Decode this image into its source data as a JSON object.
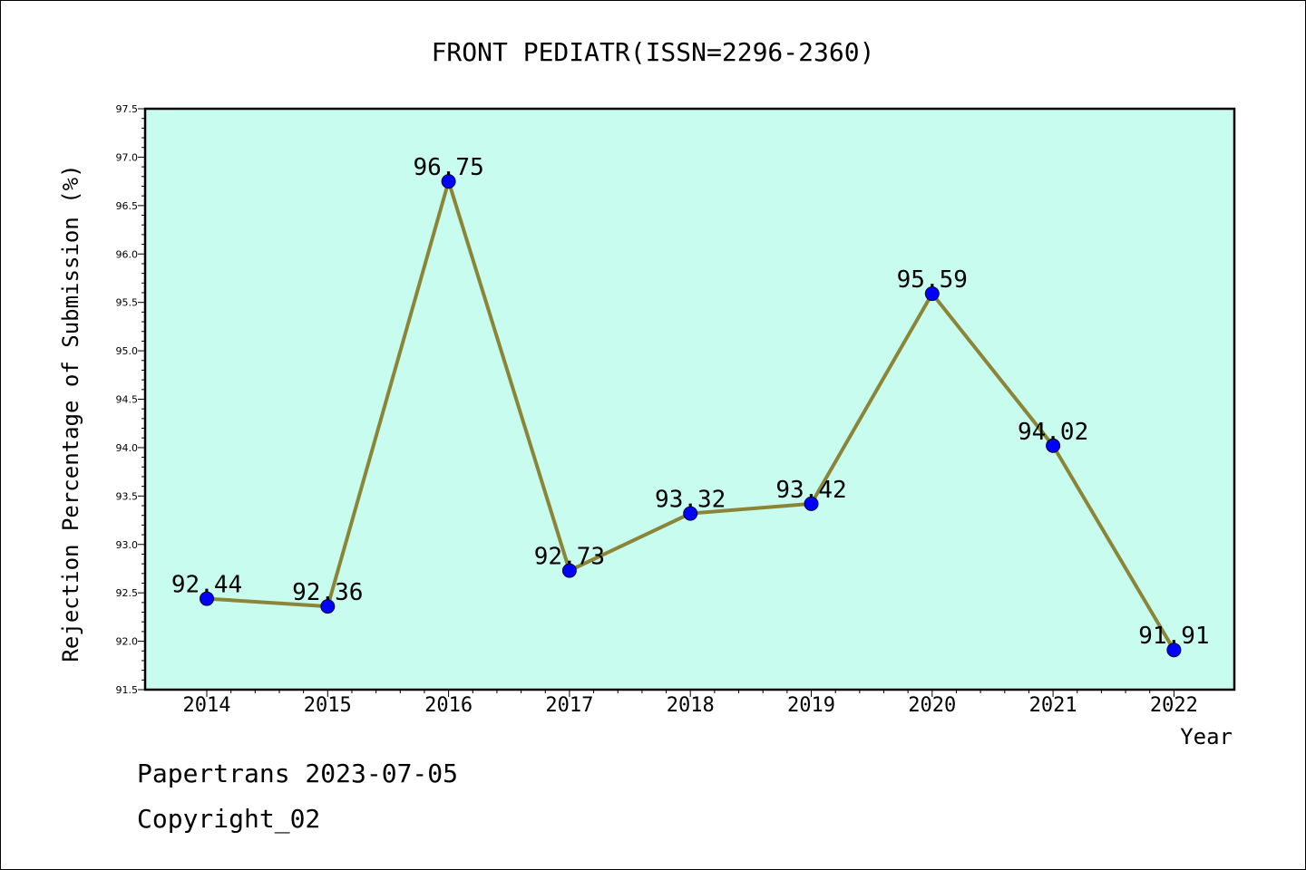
{
  "chart_data": {
    "type": "line",
    "title": "FRONT PEDIATR(ISSN=2296-2360)",
    "xlabel": "Year",
    "ylabel": "Rejection Percentage of Submission (%)",
    "categories": [
      "2014",
      "2015",
      "2016",
      "2017",
      "2018",
      "2019",
      "2020",
      "2021",
      "2022"
    ],
    "series": [
      {
        "values": [
          92.44,
          92.36,
          96.75,
          92.73,
          93.32,
          93.42,
          95.59,
          94.02,
          91.91
        ],
        "data_labels": [
          "92.44",
          "92.36",
          "96.75",
          "92.73",
          "93.32",
          "93.42",
          "95.59",
          "94.02",
          "91.91"
        ]
      }
    ],
    "ylim": [
      91.5,
      97.5
    ],
    "y_ticks": [
      "91.5",
      "92.0",
      "92.5",
      "93.0",
      "93.5",
      "94.0",
      "94.5",
      "95.0",
      "95.5",
      "96.0",
      "96.5",
      "97.0",
      "97.5"
    ],
    "grid": false,
    "colors": {
      "plot_background": "#c8fcee",
      "line": "#8b8637",
      "marker": "#0000ff",
      "axes": "#000000"
    }
  },
  "footer": {
    "line1": "Papertrans 2023-07-05",
    "line2": "Copyright_02"
  }
}
